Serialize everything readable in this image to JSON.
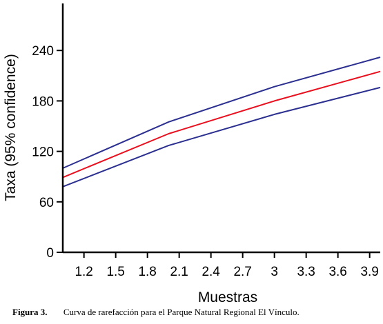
{
  "chart_data": {
    "type": "line",
    "xlabel": "Muestras",
    "ylabel": "Taxa (95% confidence)",
    "xlim": [
      1.0,
      4.0
    ],
    "ylim": [
      0,
      300
    ],
    "x_ticks": [
      "1.2",
      "1.5",
      "1.8",
      "2.1",
      "2.4",
      "2.7",
      "3",
      "3.3",
      "3.6",
      "3.9"
    ],
    "y_ticks": [
      "0",
      "60",
      "120",
      "180",
      "240"
    ],
    "grid": false,
    "legend": "none",
    "series": [
      {
        "role": "upper-95-confidence",
        "color": "#2b2f8f",
        "x": [
          1.0,
          2.0,
          3.0,
          4.0
        ],
        "y": [
          100,
          155,
          197,
          232
        ]
      },
      {
        "role": "estimate",
        "color": "#e8101e",
        "x": [
          1.0,
          2.0,
          3.0,
          4.0
        ],
        "y": [
          89,
          141,
          180,
          215
        ]
      },
      {
        "role": "lower-95-confidence",
        "color": "#2b2f8f",
        "x": [
          1.0,
          2.0,
          3.0,
          4.0
        ],
        "y": [
          78,
          127,
          164,
          196
        ]
      }
    ]
  },
  "caption": {
    "label": "Figura 3.",
    "text": "Curva de rarefacción para el Parque Natural Regional El Vínculo."
  }
}
